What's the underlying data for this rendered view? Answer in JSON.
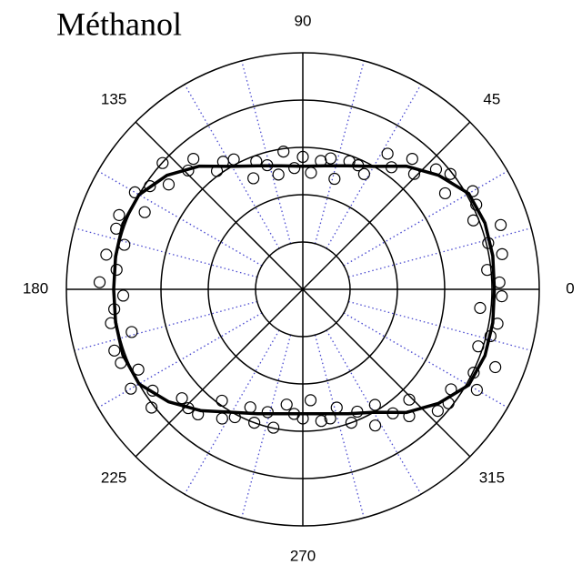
{
  "chart_data": {
    "type": "polar",
    "title": "Méthanol",
    "rlim": [
      0,
      5
    ],
    "rticks": [
      1,
      2,
      3,
      4
    ],
    "angle_ticks": [
      0,
      45,
      90,
      135,
      180,
      225,
      270,
      315
    ],
    "minor_angle_ticks": [
      15,
      30,
      60,
      75,
      105,
      120,
      150,
      165,
      195,
      210,
      240,
      255,
      285,
      300,
      330,
      345
    ],
    "minor_color": "#4a4ad0",
    "series": [
      {
        "kind": "scatter",
        "color": "#000000",
        "theta": [
          2,
          6,
          10,
          14,
          18,
          22,
          26,
          30,
          34,
          38,
          42,
          46,
          50,
          54,
          58,
          62,
          66,
          70,
          74,
          78,
          82,
          86,
          90,
          94,
          98,
          102,
          106,
          110,
          114,
          118,
          122,
          126,
          130,
          134,
          138,
          142,
          146,
          150,
          154,
          158,
          162,
          166,
          170,
          174,
          178,
          182,
          186,
          190,
          194,
          198,
          202,
          206,
          210,
          214,
          218,
          222,
          226,
          230,
          234,
          238,
          242,
          246,
          250,
          254,
          258,
          262,
          266,
          270,
          274,
          278,
          282,
          286,
          290,
          294,
          298,
          302,
          306,
          310,
          314,
          318,
          322,
          326,
          330,
          334,
          338,
          342,
          346,
          350,
          354,
          358
        ],
        "r": [
          4.16,
          3.92,
          4.28,
          4.04,
          4.4,
          3.89,
          4.08,
          4.15,
          3.63,
          3.96,
          3.79,
          3.39,
          3.6,
          3.19,
          3.38,
          2.76,
          2.87,
          2.88,
          2.43,
          2.83,
          2.74,
          2.47,
          2.8,
          2.57,
          2.94,
          2.48,
          2.73,
          2.88,
          2.57,
          3.11,
          3.18,
          3.09,
          3.6,
          3.49,
          3.99,
          3.6,
          3.9,
          4.1,
          3.72,
          4.19,
          4.15,
          3.89,
          4.22,
          3.96,
          4.3,
          3.8,
          4.01,
          4.12,
          3.73,
          4.19,
          4.15,
          3.87,
          4.2,
          3.83,
          4.06,
          3.44,
          3.49,
          3.45,
          2.91,
          3.22,
          3.06,
          2.73,
          3.0,
          2.7,
          2.99,
          2.46,
          2.64,
          2.73,
          2.35,
          2.81,
          2.79,
          2.6,
          3.0,
          2.83,
          3.26,
          2.88,
          3.24,
          3.5,
          3.24,
          3.84,
          3.91,
          3.78,
          4.25,
          4.02,
          4.39,
          3.9,
          4.09,
          4.18,
          3.77,
          4.21
        ]
      },
      {
        "kind": "line",
        "color": "#000000",
        "closed": true,
        "theta": [
          0,
          10,
          20,
          30,
          40,
          50,
          60,
          70,
          80,
          90,
          100,
          110,
          120,
          130,
          140,
          150,
          160,
          170,
          180,
          190,
          200,
          210,
          220,
          230,
          240,
          250,
          260,
          270,
          280,
          290,
          300,
          310,
          320,
          330,
          340,
          350
        ],
        "r": [
          4.05,
          4.08,
          4.1,
          4.05,
          3.75,
          3.4,
          3.0,
          2.78,
          2.65,
          2.6,
          2.65,
          2.78,
          3.0,
          3.4,
          3.75,
          4.0,
          4.05,
          4.02,
          4.0,
          4.02,
          4.05,
          4.0,
          3.7,
          3.35,
          3.0,
          2.8,
          2.67,
          2.63,
          2.67,
          2.8,
          3.0,
          3.4,
          3.75,
          4.05,
          4.1,
          4.08
        ]
      }
    ]
  }
}
